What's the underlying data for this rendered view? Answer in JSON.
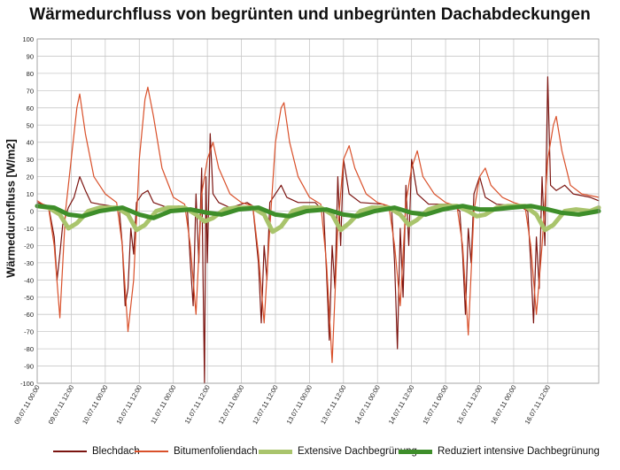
{
  "chart_data": {
    "type": "line",
    "title": "Wärmedurchfluss von begrünten und unbegrünten Dachabdeckungen",
    "xlabel": "",
    "ylabel": "Wärmedurchfluss [W/m2]",
    "ylim": [
      -100,
      100
    ],
    "ytick_step": 10,
    "xlim": [
      "09.07.11 00:00",
      "17.07.11 06:00"
    ],
    "grid": true,
    "legend_position": "bottom",
    "x_ticks": [
      "09.07.11 00:00",
      "09.07.11 12:00",
      "10.07.11 00:00",
      "10.07.11 12:00",
      "11.07.11 00:00",
      "11.07.11 12:00",
      "12.07.11 00:00",
      "12.07.11 12:00",
      "13.07.11 00:00",
      "13.07.11 12:00",
      "14.07.11 00:00",
      "14.07.11 12:00",
      "15.07.11 00:00",
      "15.07.11 12:00",
      "16.07.11 00:00",
      "16.07.11 12:00"
    ],
    "series": [
      {
        "name": "Blechdach",
        "color": "#7b1410",
        "stroke_width": 1.2,
        "points": [
          [
            "09.07.11 00:00",
            5
          ],
          [
            "09.07.11 04:00",
            3
          ],
          [
            "09.07.11 06:00",
            -15
          ],
          [
            "09.07.11 07:00",
            -40
          ],
          [
            "09.07.11 08:00",
            -25
          ],
          [
            "09.07.11 09:00",
            -8
          ],
          [
            "09.07.11 11:00",
            2
          ],
          [
            "09.07.11 13:00",
            8
          ],
          [
            "09.07.11 15:00",
            20
          ],
          [
            "09.07.11 17:00",
            12
          ],
          [
            "09.07.11 19:00",
            5
          ],
          [
            "09.07.11 22:00",
            4
          ],
          [
            "10.07.11 02:00",
            3
          ],
          [
            "10.07.11 05:00",
            0
          ],
          [
            "10.07.11 06:00",
            -20
          ],
          [
            "10.07.11 07:00",
            -55
          ],
          [
            "10.07.11 08:00",
            -45
          ],
          [
            "10.07.11 09:00",
            -10
          ],
          [
            "10.07.11 10:00",
            -25
          ],
          [
            "10.07.11 11:00",
            5
          ],
          [
            "10.07.11 13:00",
            10
          ],
          [
            "10.07.11 15:00",
            12
          ],
          [
            "10.07.11 17:00",
            5
          ],
          [
            "10.07.11 22:00",
            2
          ],
          [
            "11.07.11 02:00",
            3
          ],
          [
            "11.07.11 05:00",
            0
          ],
          [
            "11.07.11 06:00",
            -30
          ],
          [
            "11.07.11 07:00",
            -55
          ],
          [
            "11.07.11 08:00",
            10
          ],
          [
            "11.07.11 09:00",
            -30
          ],
          [
            "11.07.11 10:00",
            25
          ],
          [
            "11.07.11 10:30",
            -40
          ],
          [
            "11.07.11 11:00",
            -100
          ],
          [
            "11.07.11 11:30",
            20
          ],
          [
            "11.07.11 12:00",
            -30
          ],
          [
            "11.07.11 13:00",
            45
          ],
          [
            "11.07.11 14:00",
            10
          ],
          [
            "11.07.11 16:00",
            5
          ],
          [
            "11.07.11 20:00",
            2
          ],
          [
            "12.07.11 02:00",
            5
          ],
          [
            "12.07.11 04:00",
            3
          ],
          [
            "12.07.11 06:00",
            -30
          ],
          [
            "12.07.11 07:00",
            -65
          ],
          [
            "12.07.11 08:00",
            -20
          ],
          [
            "12.07.11 09:00",
            -40
          ],
          [
            "12.07.11 10:00",
            5
          ],
          [
            "12.07.11 12:00",
            10
          ],
          [
            "12.07.11 14:00",
            15
          ],
          [
            "12.07.11 16:00",
            8
          ],
          [
            "12.07.11 20:00",
            5
          ],
          [
            "13.07.11 02:00",
            5
          ],
          [
            "13.07.11 05:00",
            0
          ],
          [
            "13.07.11 06:00",
            -35
          ],
          [
            "13.07.11 07:00",
            -75
          ],
          [
            "13.07.11 08:00",
            -20
          ],
          [
            "13.07.11 09:00",
            -45
          ],
          [
            "13.07.11 10:00",
            20
          ],
          [
            "13.07.11 11:00",
            -20
          ],
          [
            "13.07.11 12:00",
            30
          ],
          [
            "13.07.11 14:00",
            10
          ],
          [
            "13.07.11 18:00",
            5
          ],
          [
            "14.07.11 02:00",
            4
          ],
          [
            "14.07.11 05:00",
            0
          ],
          [
            "14.07.11 06:00",
            -30
          ],
          [
            "14.07.11 07:00",
            -80
          ],
          [
            "14.07.11 08:00",
            -10
          ],
          [
            "14.07.11 09:00",
            -50
          ],
          [
            "14.07.11 10:00",
            15
          ],
          [
            "14.07.11 11:00",
            -20
          ],
          [
            "14.07.11 12:00",
            30
          ],
          [
            "14.07.11 14:00",
            10
          ],
          [
            "14.07.11 18:00",
            4
          ],
          [
            "15.07.11 02:00",
            4
          ],
          [
            "15.07.11 05:00",
            0
          ],
          [
            "15.07.11 06:00",
            -25
          ],
          [
            "15.07.11 07:00",
            -60
          ],
          [
            "15.07.11 08:00",
            -10
          ],
          [
            "15.07.11 09:00",
            -30
          ],
          [
            "15.07.11 10:00",
            10
          ],
          [
            "15.07.11 12:00",
            20
          ],
          [
            "15.07.11 14:00",
            8
          ],
          [
            "15.07.11 18:00",
            4
          ],
          [
            "16.07.11 02:00",
            3
          ],
          [
            "16.07.11 05:00",
            0
          ],
          [
            "16.07.11 06:00",
            -30
          ],
          [
            "16.07.11 07:00",
            -65
          ],
          [
            "16.07.11 08:00",
            -15
          ],
          [
            "16.07.11 09:00",
            -45
          ],
          [
            "16.07.11 10:00",
            20
          ],
          [
            "16.07.11 11:00",
            -20
          ],
          [
            "16.07.11 12:00",
            78
          ],
          [
            "16.07.11 13:00",
            15
          ],
          [
            "16.07.11 15:00",
            12
          ],
          [
            "16.07.11 18:00",
            15
          ],
          [
            "16.07.11 21:00",
            10
          ],
          [
            "17.07.11 03:00",
            8
          ],
          [
            "17.07.11 06:00",
            6
          ]
        ]
      },
      {
        "name": "Bitumenfoliendach",
        "color": "#d9502a",
        "stroke_width": 1.2,
        "points": [
          [
            "09.07.11 00:00",
            6
          ],
          [
            "09.07.11 04:00",
            2
          ],
          [
            "09.07.11 06:00",
            -20
          ],
          [
            "09.07.11 08:00",
            -62
          ],
          [
            "09.07.11 10:00",
            0
          ],
          [
            "09.07.11 12:00",
            30
          ],
          [
            "09.07.11 14:00",
            60
          ],
          [
            "09.07.11 15:00",
            68
          ],
          [
            "09.07.11 17:00",
            45
          ],
          [
            "09.07.11 20:00",
            20
          ],
          [
            "10.07.11 00:00",
            10
          ],
          [
            "10.07.11 04:00",
            5
          ],
          [
            "10.07.11 06:00",
            -20
          ],
          [
            "10.07.11 08:00",
            -70
          ],
          [
            "10.07.11 10:00",
            -40
          ],
          [
            "10.07.11 12:00",
            30
          ],
          [
            "10.07.11 14:00",
            65
          ],
          [
            "10.07.11 15:00",
            72
          ],
          [
            "10.07.11 17:00",
            55
          ],
          [
            "10.07.11 20:00",
            25
          ],
          [
            "11.07.11 00:00",
            8
          ],
          [
            "11.07.11 04:00",
            4
          ],
          [
            "11.07.11 06:00",
            -20
          ],
          [
            "11.07.11 08:00",
            -60
          ],
          [
            "11.07.11 10:00",
            10
          ],
          [
            "11.07.11 12:00",
            30
          ],
          [
            "11.07.11 14:00",
            40
          ],
          [
            "11.07.11 16:00",
            25
          ],
          [
            "11.07.11 20:00",
            10
          ],
          [
            "12.07.11 00:00",
            5
          ],
          [
            "12.07.11 04:00",
            3
          ],
          [
            "12.07.11 06:00",
            -25
          ],
          [
            "12.07.11 08:00",
            -65
          ],
          [
            "12.07.11 10:00",
            -10
          ],
          [
            "12.07.11 12:00",
            40
          ],
          [
            "12.07.11 14:00",
            60
          ],
          [
            "12.07.11 15:00",
            63
          ],
          [
            "12.07.11 17:00",
            40
          ],
          [
            "12.07.11 20:00",
            20
          ],
          [
            "13.07.11 00:00",
            8
          ],
          [
            "13.07.11 04:00",
            4
          ],
          [
            "13.07.11 06:00",
            -30
          ],
          [
            "13.07.11 08:00",
            -88
          ],
          [
            "13.07.11 10:00",
            -10
          ],
          [
            "13.07.11 12:00",
            30
          ],
          [
            "13.07.11 14:00",
            38
          ],
          [
            "13.07.11 16:00",
            25
          ],
          [
            "13.07.11 20:00",
            10
          ],
          [
            "14.07.11 00:00",
            5
          ],
          [
            "14.07.11 04:00",
            3
          ],
          [
            "14.07.11 06:00",
            -20
          ],
          [
            "14.07.11 08:00",
            -55
          ],
          [
            "14.07.11 10:00",
            5
          ],
          [
            "14.07.11 12:00",
            25
          ],
          [
            "14.07.11 14:00",
            35
          ],
          [
            "14.07.11 16:00",
            20
          ],
          [
            "14.07.11 20:00",
            10
          ],
          [
            "15.07.11 00:00",
            5
          ],
          [
            "15.07.11 04:00",
            3
          ],
          [
            "15.07.11 06:00",
            -20
          ],
          [
            "15.07.11 08:00",
            -72
          ],
          [
            "15.07.11 10:00",
            0
          ],
          [
            "15.07.11 12:00",
            20
          ],
          [
            "15.07.11 14:00",
            25
          ],
          [
            "15.07.11 16:00",
            15
          ],
          [
            "15.07.11 20:00",
            8
          ],
          [
            "16.07.11 00:00",
            5
          ],
          [
            "16.07.11 04:00",
            3
          ],
          [
            "16.07.11 06:00",
            -20
          ],
          [
            "16.07.11 08:00",
            -60
          ],
          [
            "16.07.11 10:00",
            -20
          ],
          [
            "16.07.11 12:00",
            30
          ],
          [
            "16.07.11 14:00",
            50
          ],
          [
            "16.07.11 15:00",
            55
          ],
          [
            "16.07.11 17:00",
            35
          ],
          [
            "16.07.11 20:00",
            15
          ],
          [
            "17.07.11 00:00",
            10
          ],
          [
            "17.07.11 06:00",
            8
          ]
        ]
      },
      {
        "name": "Extensive Dachbegrünung",
        "color": "#a9c46c",
        "stroke_width": 5,
        "points": [
          [
            "09.07.11 00:00",
            3
          ],
          [
            "09.07.11 04:00",
            2
          ],
          [
            "09.07.11 08:00",
            -2
          ],
          [
            "09.07.11 11:00",
            -10
          ],
          [
            "09.07.11 14:00",
            -7
          ],
          [
            "09.07.11 18:00",
            0
          ],
          [
            "09.07.11 22:00",
            2
          ],
          [
            "10.07.11 04:00",
            2
          ],
          [
            "10.07.11 08:00",
            -2
          ],
          [
            "10.07.11 11:00",
            -11
          ],
          [
            "10.07.11 14:00",
            -8
          ],
          [
            "10.07.11 18:00",
            0
          ],
          [
            "10.07.11 22:00",
            2
          ],
          [
            "11.07.11 04:00",
            2
          ],
          [
            "11.07.11 08:00",
            -2
          ],
          [
            "11.07.11 11:00",
            -6
          ],
          [
            "11.07.11 14:00",
            -4
          ],
          [
            "11.07.11 18:00",
            1
          ],
          [
            "11.07.11 22:00",
            2
          ],
          [
            "12.07.11 04:00",
            2
          ],
          [
            "12.07.11 08:00",
            -2
          ],
          [
            "12.07.11 11:00",
            -12
          ],
          [
            "12.07.11 14:00",
            -9
          ],
          [
            "12.07.11 18:00",
            0
          ],
          [
            "12.07.11 22:00",
            2
          ],
          [
            "13.07.11 04:00",
            2
          ],
          [
            "13.07.11 08:00",
            -2
          ],
          [
            "13.07.11 11:00",
            -11
          ],
          [
            "13.07.11 14:00",
            -7
          ],
          [
            "13.07.11 18:00",
            0
          ],
          [
            "13.07.11 22:00",
            2
          ],
          [
            "14.07.11 04:00",
            2
          ],
          [
            "14.07.11 08:00",
            -2
          ],
          [
            "14.07.11 11:00",
            -8
          ],
          [
            "14.07.11 14:00",
            -5
          ],
          [
            "14.07.11 18:00",
            1
          ],
          [
            "14.07.11 22:00",
            3
          ],
          [
            "15.07.11 04:00",
            3
          ],
          [
            "15.07.11 08:00",
            0
          ],
          [
            "15.07.11 11:00",
            -3
          ],
          [
            "15.07.11 14:00",
            -2
          ],
          [
            "15.07.11 18:00",
            2
          ],
          [
            "15.07.11 22:00",
            3
          ],
          [
            "16.07.11 04:00",
            3
          ],
          [
            "16.07.11 08:00",
            -2
          ],
          [
            "16.07.11 11:00",
            -11
          ],
          [
            "16.07.11 14:00",
            -8
          ],
          [
            "16.07.11 18:00",
            0
          ],
          [
            "16.07.11 22:00",
            1
          ],
          [
            "17.07.11 03:00",
            0
          ],
          [
            "17.07.11 06:00",
            2
          ]
        ]
      },
      {
        "name": "Reduziert intensive Dachbegrünung",
        "color": "#3e8e2a",
        "stroke_width": 5,
        "points": [
          [
            "09.07.11 00:00",
            3
          ],
          [
            "09.07.11 06:00",
            2
          ],
          [
            "09.07.11 11:00",
            -2
          ],
          [
            "09.07.11 16:00",
            -3
          ],
          [
            "09.07.11 22:00",
            0
          ],
          [
            "10.07.11 06:00",
            2
          ],
          [
            "10.07.11 12:00",
            -2
          ],
          [
            "10.07.11 17:00",
            -4
          ],
          [
            "10.07.11 23:00",
            0
          ],
          [
            "11.07.11 06:00",
            1
          ],
          [
            "11.07.11 12:00",
            -1
          ],
          [
            "11.07.11 17:00",
            -2
          ],
          [
            "11.07.11 23:00",
            1
          ],
          [
            "12.07.11 06:00",
            2
          ],
          [
            "12.07.11 12:00",
            -2
          ],
          [
            "12.07.11 17:00",
            -3
          ],
          [
            "12.07.11 23:00",
            0
          ],
          [
            "13.07.11 06:00",
            1
          ],
          [
            "13.07.11 12:00",
            -2
          ],
          [
            "13.07.11 17:00",
            -3
          ],
          [
            "13.07.11 23:00",
            0
          ],
          [
            "14.07.11 06:00",
            2
          ],
          [
            "14.07.11 12:00",
            -1
          ],
          [
            "14.07.11 17:00",
            -2
          ],
          [
            "14.07.11 23:00",
            1
          ],
          [
            "15.07.11 06:00",
            3
          ],
          [
            "15.07.11 12:00",
            1
          ],
          [
            "15.07.11 17:00",
            1
          ],
          [
            "15.07.11 23:00",
            2
          ],
          [
            "16.07.11 06:00",
            3
          ],
          [
            "16.07.11 12:00",
            1
          ],
          [
            "16.07.11 17:00",
            -1
          ],
          [
            "16.07.11 23:00",
            -2
          ],
          [
            "17.07.11 06:00",
            0
          ]
        ]
      }
    ]
  }
}
